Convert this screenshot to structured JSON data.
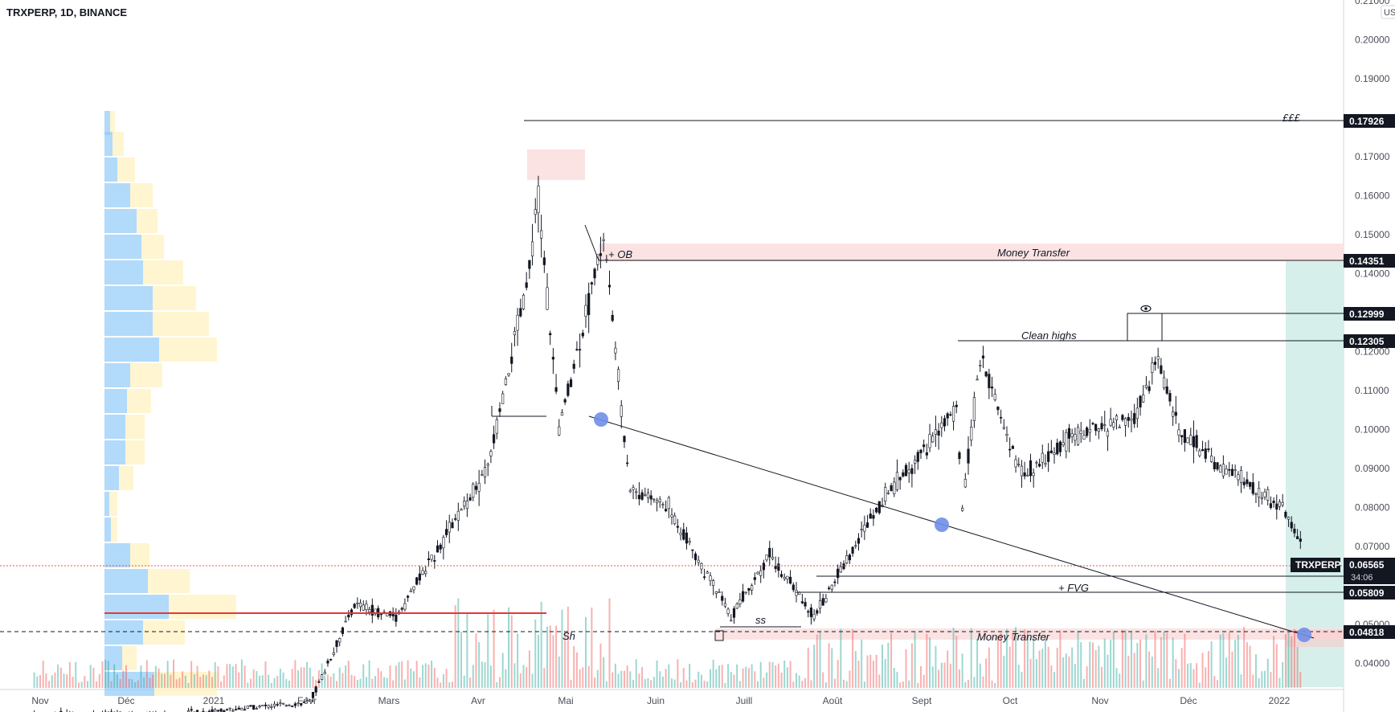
{
  "header": {
    "symbol_title": "TRXPERP, 1D, BINANCE"
  },
  "axis": {
    "currency": "USD",
    "price_ticks": [
      "0.21000",
      "0.20000",
      "0.19000",
      "0.18000",
      "0.17000",
      "0.16000",
      "0.15000",
      "0.14000",
      "0.13000",
      "0.12000",
      "0.11000",
      "0.10000",
      "0.09000",
      "0.08000",
      "0.07000",
      "0.05000",
      "0.04000"
    ],
    "time_ticks": [
      "Nov",
      "Déc",
      "2021",
      "Févr",
      "Mars",
      "Avr",
      "Mai",
      "Juin",
      "Juill",
      "Août",
      "Sept",
      "Oct",
      "Nov",
      "Déc",
      "2022"
    ]
  },
  "levels": [
    {
      "value": "0.17926"
    },
    {
      "value": "0.14351"
    },
    {
      "value": "0.12999"
    },
    {
      "value": "0.12305"
    },
    {
      "value": "0.05809"
    },
    {
      "value": "0.04818"
    }
  ],
  "current": {
    "symbol": "TRXPERP",
    "price": "0.06565",
    "countdown": "34:06"
  },
  "annotations": {
    "fff": "£££",
    "ob": "+ OB",
    "money_transfer_top": "Money Transfer",
    "clean_highs": "Clean highs",
    "fvg": "+ FVG",
    "ss": "ss",
    "sh": "Sh",
    "money_transfer_bottom": "Money Transfer",
    "eye_icon": "eye-icon"
  },
  "colors": {
    "up": "#26a69a",
    "down": "#ef5350",
    "profile_up": "#90caf9",
    "profile_down": "#fff3c4",
    "zone": "#fbe3e3",
    "target_zone": "#d6efea",
    "poc": "#e53935",
    "trendline_marker": "#6f8fe8"
  },
  "chart_data": {
    "type": "candlestick",
    "title": "TRXPERP, 1D, BINANCE",
    "ylim": [
      0.035,
      0.21
    ],
    "price_path": [
      {
        "date": "2020-10-26",
        "close": 0.027
      },
      {
        "date": "2020-12-15",
        "close": 0.027
      },
      {
        "date": "2021-01-31",
        "close": 0.03
      },
      {
        "date": "2021-02-15",
        "close": 0.055
      },
      {
        "date": "2021-03-01",
        "close": 0.052
      },
      {
        "date": "2021-04-01",
        "close": 0.09
      },
      {
        "date": "2021-04-15",
        "close": 0.14
      },
      {
        "date": "2021-04-18",
        "close": 0.16
      },
      {
        "date": "2021-04-25",
        "close": 0.1
      },
      {
        "date": "2021-05-10",
        "close": 0.15
      },
      {
        "date": "2021-05-19",
        "close": 0.085
      },
      {
        "date": "2021-06-01",
        "close": 0.08
      },
      {
        "date": "2021-06-22",
        "close": 0.052
      },
      {
        "date": "2021-07-05",
        "close": 0.068
      },
      {
        "date": "2021-07-20",
        "close": 0.052
      },
      {
        "date": "2021-08-10",
        "close": 0.08
      },
      {
        "date": "2021-09-06",
        "close": 0.105
      },
      {
        "date": "2021-09-08",
        "close": 0.08
      },
      {
        "date": "2021-09-14",
        "close": 0.118
      },
      {
        "date": "2021-09-28",
        "close": 0.088
      },
      {
        "date": "2021-10-15",
        "close": 0.098
      },
      {
        "date": "2021-11-05",
        "close": 0.103
      },
      {
        "date": "2021-11-13",
        "close": 0.118
      },
      {
        "date": "2021-11-20",
        "close": 0.1
      },
      {
        "date": "2021-12-04",
        "close": 0.09
      },
      {
        "date": "2021-12-10",
        "close": 0.088
      },
      {
        "date": "2021-12-25",
        "close": 0.08
      },
      {
        "date": "2022-01-04",
        "close": 0.0657
      }
    ],
    "horizontal_levels": [
      0.17926,
      0.14351,
      0.12999,
      0.12305,
      0.05809,
      0.04818
    ],
    "trendline": {
      "from": {
        "date": "2021-05-15",
        "price": 0.1028
      },
      "to": {
        "date": "2022-01-08",
        "price": 0.0475
      }
    }
  }
}
